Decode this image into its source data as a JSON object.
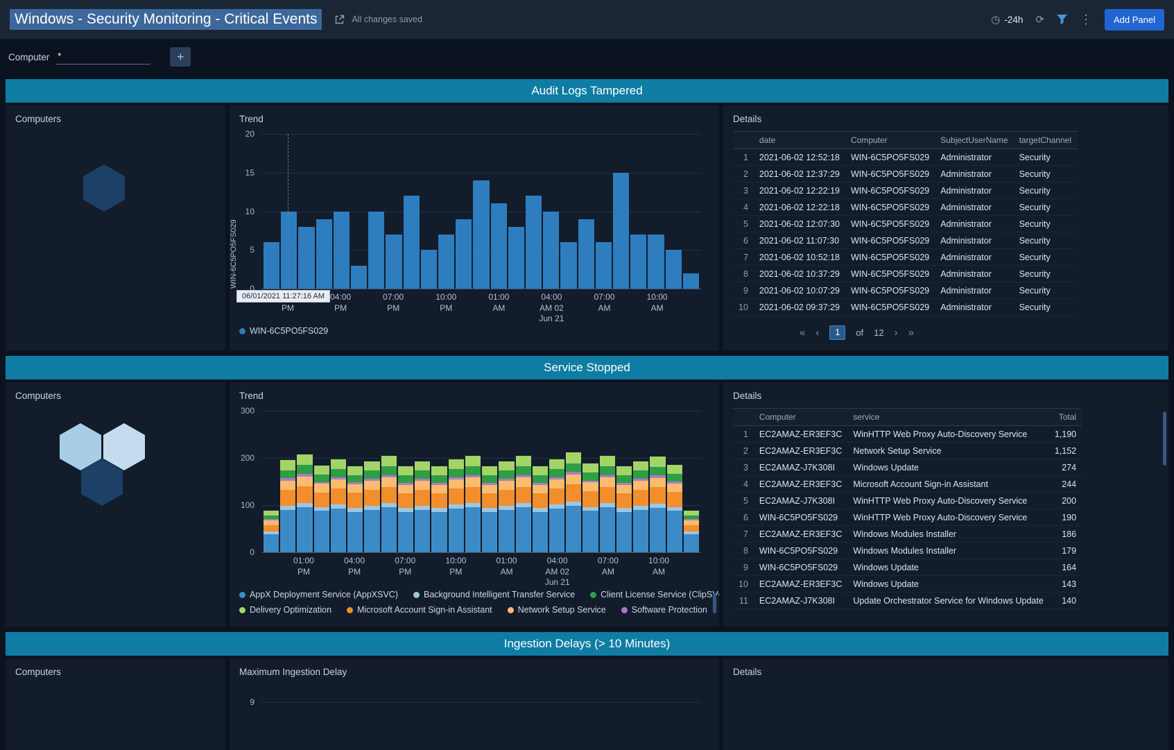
{
  "header": {
    "title": "Windows - Security Monitoring - Critical Events",
    "saved_status": "All changes saved",
    "time_range": "-24h",
    "add_panel": "Add Panel"
  },
  "icons": {
    "clock": "◷",
    "refresh": "⟳",
    "kebab": "⋮",
    "plus": "+"
  },
  "filter": {
    "label": "Computer",
    "value": "*"
  },
  "audit": {
    "title": "Audit Logs Tampered",
    "computers_title": "Computers",
    "trend_title": "Trend",
    "details_title": "Details",
    "tooltip": "06/01/2021 11:27:16 AM",
    "honeycomb": [
      "#1d4066"
    ],
    "table": {
      "columns": [
        "",
        "date",
        "Computer",
        "SubjectUserName",
        "targetChannel"
      ],
      "aligns": [
        "right",
        "left",
        "left",
        "left",
        "left"
      ],
      "rows": [
        [
          "1",
          "2021-06-02 12:52:18",
          "WIN-6C5PO5FS029",
          "Administrator",
          "Security"
        ],
        [
          "2",
          "2021-06-02 12:37:29",
          "WIN-6C5PO5FS029",
          "Administrator",
          "Security"
        ],
        [
          "3",
          "2021-06-02 12:22:19",
          "WIN-6C5PO5FS029",
          "Administrator",
          "Security"
        ],
        [
          "4",
          "2021-06-02 12:22:18",
          "WIN-6C5PO5FS029",
          "Administrator",
          "Security"
        ],
        [
          "5",
          "2021-06-02 12:07:30",
          "WIN-6C5PO5FS029",
          "Administrator",
          "Security"
        ],
        [
          "6",
          "2021-06-02 11:07:30",
          "WIN-6C5PO5FS029",
          "Administrator",
          "Security"
        ],
        [
          "7",
          "2021-06-02 10:52:18",
          "WIN-6C5PO5FS029",
          "Administrator",
          "Security"
        ],
        [
          "8",
          "2021-06-02 10:37:29",
          "WIN-6C5PO5FS029",
          "Administrator",
          "Security"
        ],
        [
          "9",
          "2021-06-02 10:07:29",
          "WIN-6C5PO5FS029",
          "Administrator",
          "Security"
        ],
        [
          "10",
          "2021-06-02 09:37:29",
          "WIN-6C5PO5FS029",
          "Administrator",
          "Security"
        ]
      ]
    },
    "pagination": {
      "first": "«",
      "prev": "‹",
      "page": "1",
      "of": "of",
      "total": "12",
      "next": "›",
      "last": "»"
    }
  },
  "service": {
    "title": "Service Stopped",
    "computers_title": "Computers",
    "trend_title": "Trend",
    "details_title": "Details",
    "honeycomb": [
      "#a9cde6",
      "#c3dcee",
      "#1d4066"
    ],
    "table": {
      "columns": [
        "",
        "Computer",
        "service",
        "Total"
      ],
      "aligns": [
        "right",
        "left",
        "left",
        "right"
      ],
      "rows": [
        [
          "1",
          "EC2AMAZ-ER3EF3C",
          "WinHTTP Web Proxy Auto-Discovery Service",
          "1,190"
        ],
        [
          "2",
          "EC2AMAZ-ER3EF3C",
          "Network Setup Service",
          "1,152"
        ],
        [
          "3",
          "EC2AMAZ-J7K308I",
          "Windows Update",
          "274"
        ],
        [
          "4",
          "EC2AMAZ-ER3EF3C",
          "Microsoft Account Sign-in Assistant",
          "244"
        ],
        [
          "5",
          "EC2AMAZ-J7K308I",
          "WinHTTP Web Proxy Auto-Discovery Service",
          "200"
        ],
        [
          "6",
          "WIN-6C5PO5FS029",
          "WinHTTP Web Proxy Auto-Discovery Service",
          "190"
        ],
        [
          "7",
          "EC2AMAZ-ER3EF3C",
          "Windows Modules Installer",
          "186"
        ],
        [
          "8",
          "WIN-6C5PO5FS029",
          "Windows Modules Installer",
          "179"
        ],
        [
          "9",
          "WIN-6C5PO5FS029",
          "Windows Update",
          "164"
        ],
        [
          "10",
          "EC2AMAZ-ER3EF3C",
          "Windows Update",
          "143"
        ],
        [
          "11",
          "EC2AMAZ-J7K308I",
          "Update Orchestrator Service for Windows Update",
          "140"
        ]
      ]
    }
  },
  "ingestion": {
    "title": "Ingestion Delays (> 10 Minutes)",
    "computers_title": "Computers",
    "chart_title": "Maximum Ingestion Delay",
    "details_title": "Details",
    "ytick": "9"
  },
  "chart_data": [
    {
      "type": "bar",
      "title": "Trend",
      "ylabel": "WIN-6C5PO5FS029",
      "ylim": [
        0,
        20
      ],
      "yticks": [
        0,
        5,
        10,
        15,
        20
      ],
      "color": "#2e7dbe",
      "values": [
        6,
        10,
        8,
        9,
        10,
        3,
        10,
        7,
        12,
        5,
        7,
        9,
        14,
        11,
        8,
        12,
        10,
        6,
        9,
        6,
        15,
        7,
        7,
        5,
        2
      ],
      "annotation": {
        "text": "06/01/2021 11:27:16 AM",
        "at": 1
      },
      "x_ticks": [
        {
          "at": 1,
          "lines": [
            "01:00",
            "PM"
          ]
        },
        {
          "at": 4,
          "lines": [
            "04:00",
            "PM"
          ]
        },
        {
          "at": 7,
          "lines": [
            "07:00",
            "PM"
          ]
        },
        {
          "at": 10,
          "lines": [
            "10:00",
            "PM"
          ]
        },
        {
          "at": 13,
          "lines": [
            "01:00",
            "AM"
          ]
        },
        {
          "at": 16,
          "lines": [
            "04:00",
            "AM 02",
            "Jun 21"
          ]
        },
        {
          "at": 19,
          "lines": [
            "07:00",
            "AM"
          ]
        },
        {
          "at": 22,
          "lines": [
            "10:00",
            "AM"
          ]
        }
      ],
      "legend_rows": [
        [
          {
            "label": "WIN-6C5PO5FS029",
            "color": "#2e7dbe"
          }
        ]
      ]
    },
    {
      "type": "stacked-bar",
      "title": "Trend",
      "ylim": [
        0,
        300
      ],
      "yticks": [
        0,
        100,
        200,
        300
      ],
      "x_ticks": [
        {
          "at": 2,
          "lines": [
            "01:00",
            "PM"
          ]
        },
        {
          "at": 5,
          "lines": [
            "04:00",
            "PM"
          ]
        },
        {
          "at": 8,
          "lines": [
            "07:00",
            "PM"
          ]
        },
        {
          "at": 11,
          "lines": [
            "10:00",
            "PM"
          ]
        },
        {
          "at": 14,
          "lines": [
            "01:00",
            "AM"
          ]
        },
        {
          "at": 17,
          "lines": [
            "04:00",
            "AM 02",
            "Jun 21"
          ]
        },
        {
          "at": 20,
          "lines": [
            "07:00",
            "AM"
          ]
        },
        {
          "at": 23,
          "lines": [
            "10:00",
            "AM"
          ]
        }
      ],
      "series": [
        {
          "name": "AppX Deployment Service (AppXSVC)",
          "color": "#3d8bc6",
          "values": [
            38,
            90,
            95,
            88,
            92,
            86,
            90,
            95,
            86,
            90,
            86,
            92,
            95,
            86,
            90,
            95,
            86,
            92,
            98,
            88,
            95,
            86,
            90,
            94,
            88,
            38
          ]
        },
        {
          "name": "Background Intelligent Transfer Service",
          "color": "#9ec7e2",
          "values": [
            6,
            9,
            9,
            8,
            9,
            8,
            9,
            9,
            8,
            9,
            8,
            9,
            9,
            8,
            9,
            9,
            8,
            9,
            9,
            8,
            9,
            8,
            9,
            9,
            8,
            6
          ]
        },
        {
          "name": "Microsoft Account Sign-in Assistant",
          "color": "#f28e2c",
          "values": [
            14,
            34,
            36,
            31,
            34,
            32,
            33,
            35,
            31,
            33,
            31,
            34,
            35,
            31,
            33,
            35,
            31,
            34,
            37,
            33,
            35,
            31,
            33,
            35,
            32,
            14
          ]
        },
        {
          "name": "Network Setup Service",
          "color": "#fbbb6f",
          "values": [
            10,
            19,
            21,
            18,
            19,
            18,
            19,
            20,
            18,
            19,
            18,
            19,
            20,
            18,
            19,
            20,
            18,
            19,
            21,
            19,
            20,
            18,
            19,
            20,
            18,
            10
          ]
        },
        {
          "name": "Software Protection",
          "color": "#a87bc9",
          "values": [
            2,
            5,
            5,
            4,
            5,
            4,
            5,
            5,
            4,
            5,
            4,
            5,
            5,
            4,
            5,
            5,
            4,
            5,
            5,
            4,
            5,
            4,
            5,
            5,
            4,
            2
          ]
        },
        {
          "name": "Client License Service (ClipSVC)",
          "color": "#2f9e44",
          "values": [
            8,
            17,
            19,
            16,
            17,
            16,
            17,
            18,
            16,
            17,
            16,
            17,
            18,
            16,
            17,
            18,
            16,
            17,
            19,
            17,
            18,
            16,
            17,
            18,
            16,
            8
          ]
        },
        {
          "name": "Delivery Optimization",
          "color": "#a2d468",
          "values": [
            10,
            21,
            23,
            19,
            21,
            19,
            20,
            22,
            19,
            20,
            19,
            21,
            22,
            19,
            20,
            22,
            19,
            21,
            23,
            20,
            22,
            19,
            20,
            22,
            20,
            10
          ]
        }
      ],
      "legend_rows": [
        [
          {
            "label": "AppX Deployment Service (AppXSVC)",
            "color": "#3d8bc6"
          },
          {
            "label": "Background Intelligent Transfer Service",
            "color": "#9ec7e2"
          },
          {
            "label": "Client License Service (ClipSVC)",
            "color": "#2f9e44"
          }
        ],
        [
          {
            "label": "Delivery Optimization",
            "color": "#a2d468"
          },
          {
            "label": "Microsoft Account Sign-in Assistant",
            "color": "#f28e2c"
          },
          {
            "label": "Network Setup Service",
            "color": "#fbbb6f"
          },
          {
            "label": "Software Protection",
            "color": "#a87bc9"
          }
        ]
      ]
    }
  ]
}
